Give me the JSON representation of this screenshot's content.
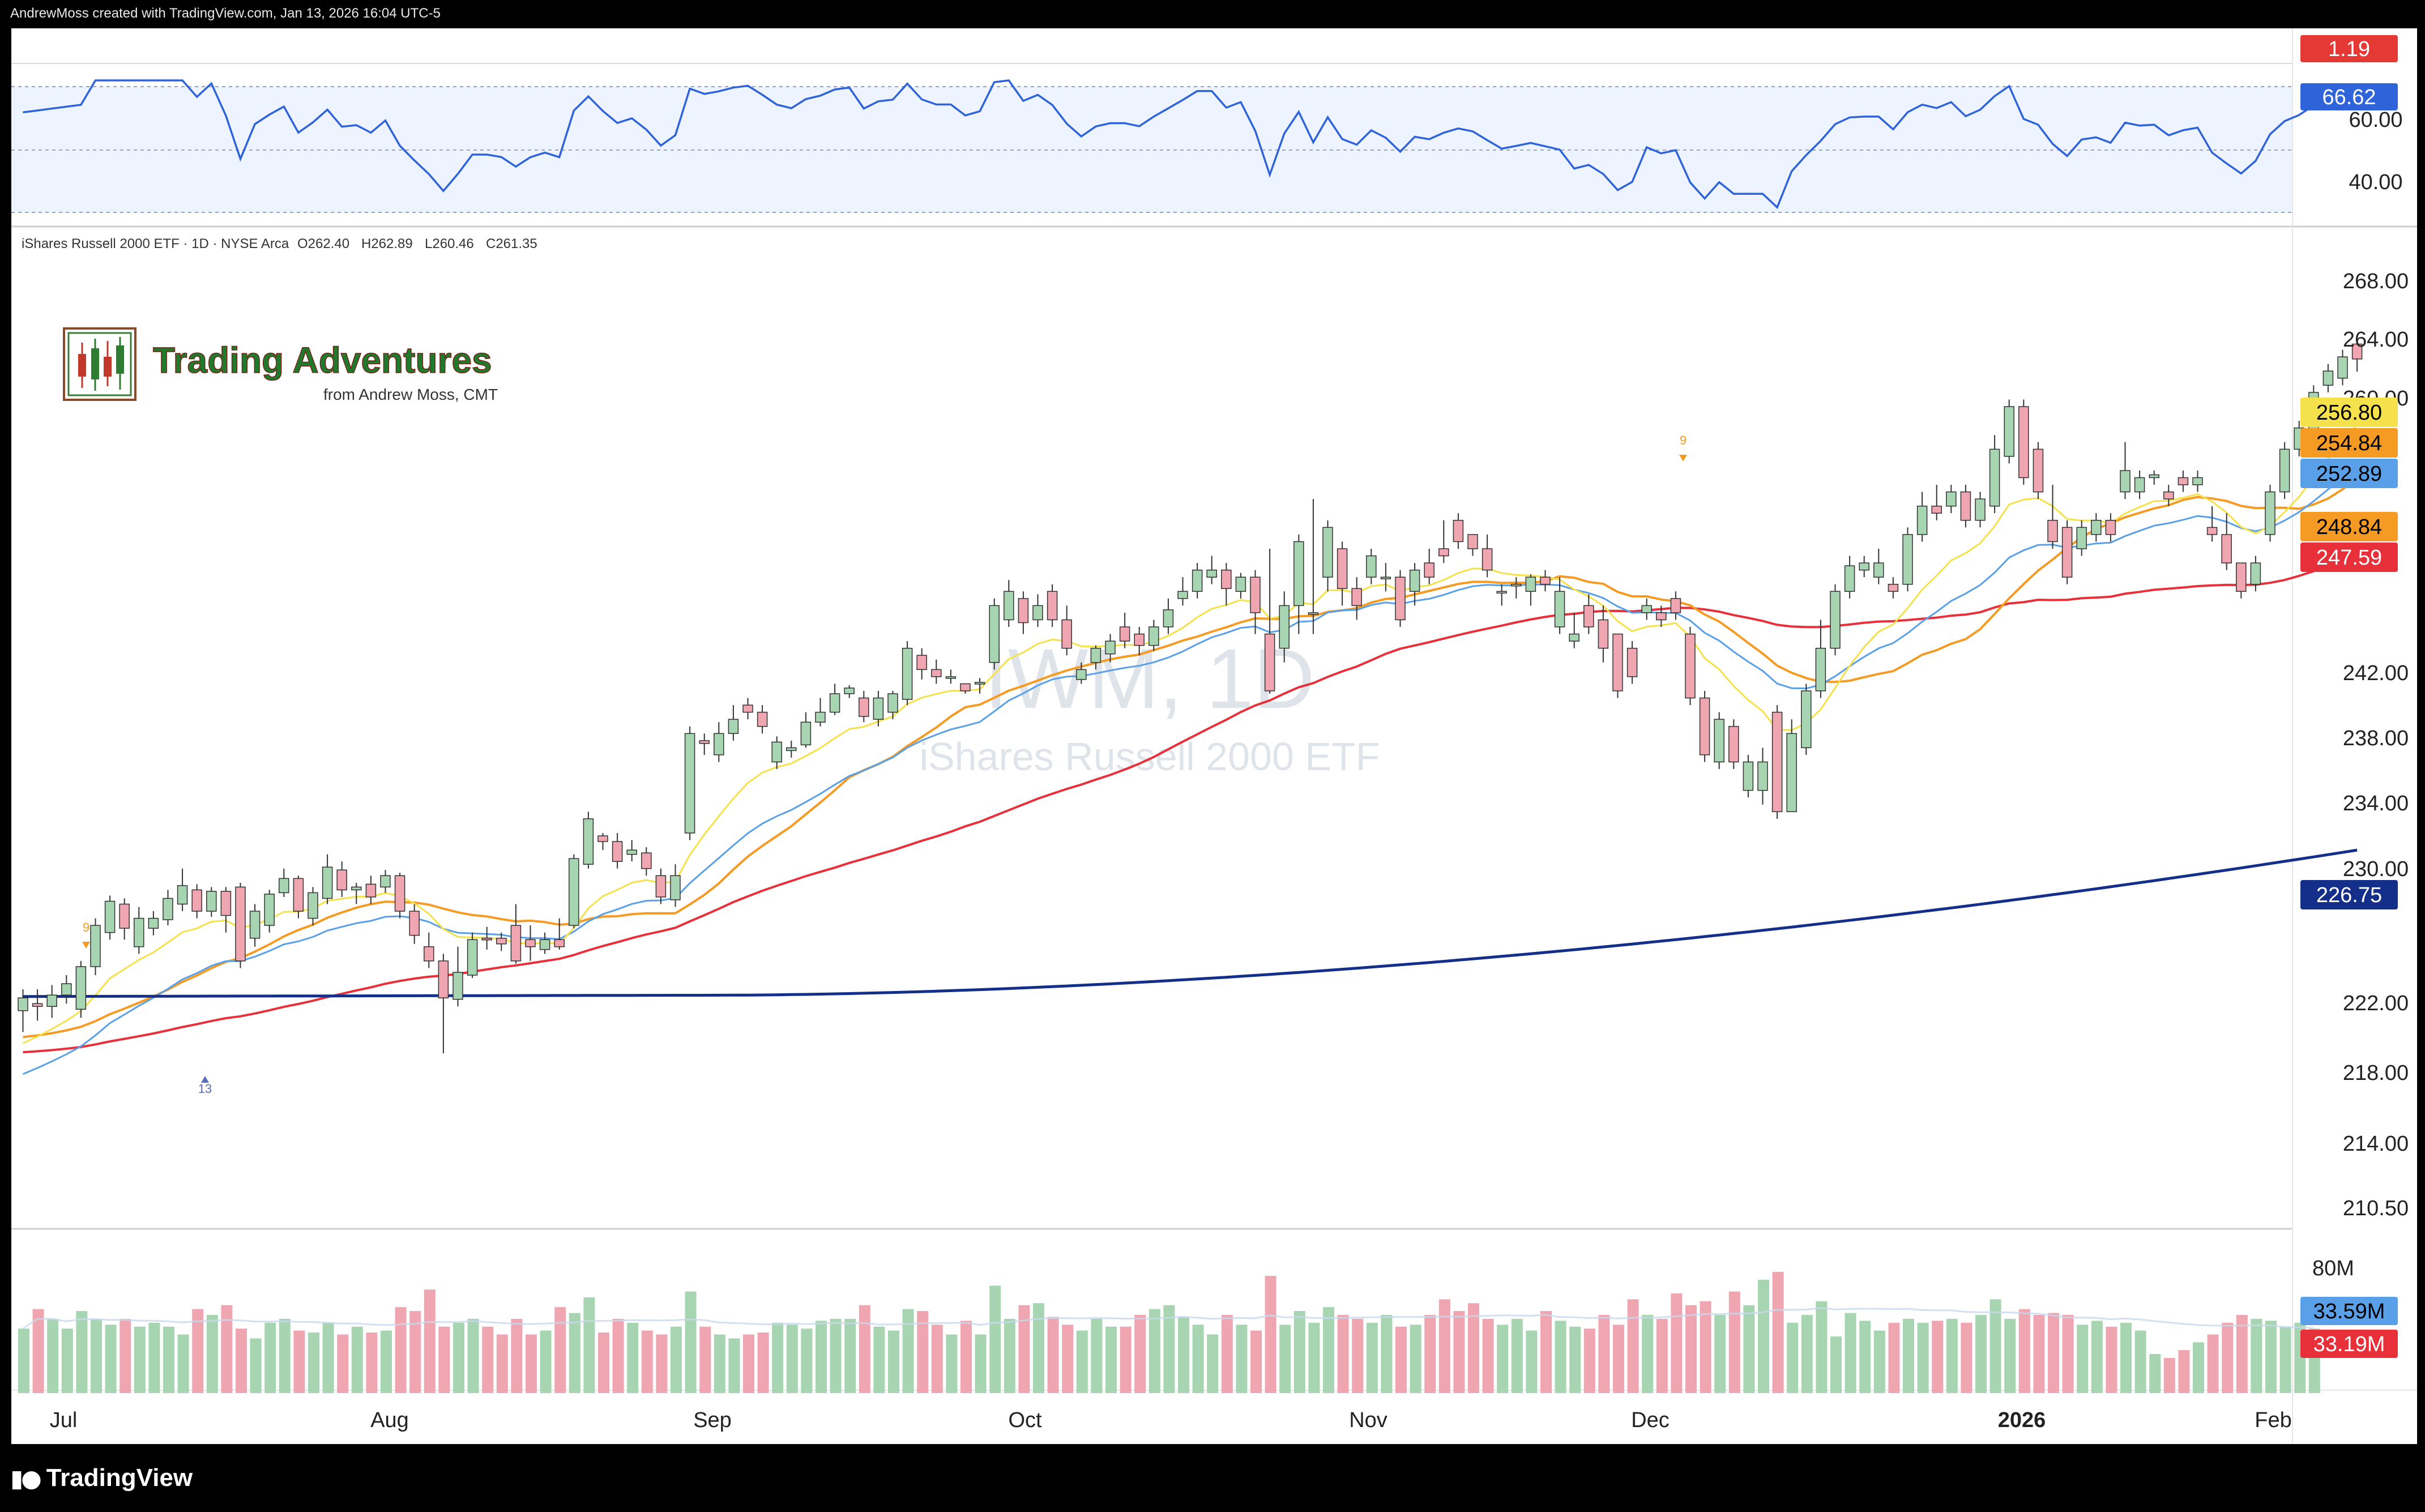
{
  "header": {
    "credit": "AndrewMoss created with TradingView.com, Jan 13, 2026 16:04 UTC-5"
  },
  "footer": {
    "brand": "TradingView",
    "icon": "tradingview-logo-icon"
  },
  "watermark": {
    "symbol": "IWM, 1D",
    "name": "iShares Russell 2000 ETF"
  },
  "logo": {
    "title": "Trading Adventures",
    "subtitle": "from Andrew Moss, CMT",
    "icon": "candlestick-logo-icon"
  },
  "legend": {
    "symbol": "iShares Russell 2000 ETF · 1D · NYSE Arca",
    "open": "O262.40",
    "high": "H262.89",
    "low": "L260.46",
    "close": "C261.35"
  },
  "colors": {
    "up": "#a8d5b1",
    "down": "#f0a6b0",
    "ema10": "#f5e14b",
    "ema21": "#5aa0e8",
    "sma20": "#f59a22",
    "sma50": "#e8303a",
    "sma200": "#142f8a",
    "rsi": "#2f63d9"
  },
  "chart_data": {
    "type": "candlestick",
    "symbol": "IWM",
    "interval": "1D",
    "x_ticks": [
      "Jul",
      "Aug",
      "Sep",
      "Oct",
      "Nov",
      "Dec",
      "2026",
      "Feb"
    ],
    "price_ticks": [
      "268.00",
      "264.00",
      "260.00",
      "242.00",
      "238.00",
      "234.00",
      "230.00",
      "222.00",
      "218.00",
      "214.00",
      "210.50"
    ],
    "ma_labels": [
      {
        "value": "256.80",
        "color": "#f5e14b",
        "text_color": "#000000"
      },
      {
        "value": "254.84",
        "color": "#f59a22",
        "text_color": "#000000"
      },
      {
        "value": "252.89",
        "color": "#5aa0e8",
        "text_color": "#000000"
      },
      {
        "value": "248.84",
        "color": "#f59a22",
        "text_color": "#000000"
      },
      {
        "value": "247.59",
        "color": "#e8303a",
        "text_color": "#ffffff"
      },
      {
        "value": "226.75",
        "color": "#142f8a",
        "text_color": "#ffffff"
      }
    ],
    "rsi": {
      "ticks": [
        "60.00",
        "40.00"
      ],
      "last": "66.62",
      "top_value": "1.19"
    },
    "volume": {
      "tick": "80M",
      "label_up": "33.59M",
      "label_down": "33.19M"
    },
    "markers": [
      {
        "text": "9"
      },
      {
        "text": "13"
      },
      {
        "text": "9"
      }
    ],
    "candles": [
      [
        215.5,
        216.4,
        214.0,
        217.0
      ],
      [
        216.0,
        215.8,
        214.8,
        217.0
      ],
      [
        215.8,
        216.6,
        215.0,
        217.3
      ],
      [
        216.6,
        217.4,
        216.0,
        218.0
      ],
      [
        215.6,
        218.6,
        215.0,
        219.0
      ],
      [
        218.6,
        221.5,
        218.0,
        222.0
      ],
      [
        221.0,
        223.2,
        220.5,
        223.6
      ],
      [
        223.0,
        221.3,
        220.5,
        223.4
      ],
      [
        220.0,
        222.0,
        219.5,
        222.8
      ],
      [
        221.3,
        222.0,
        220.8,
        222.5
      ],
      [
        221.9,
        223.4,
        221.5,
        224.0
      ],
      [
        223.0,
        224.3,
        222.5,
        225.5
      ],
      [
        224.0,
        222.5,
        222.0,
        224.4
      ],
      [
        222.5,
        223.9,
        222.1,
        224.2
      ],
      [
        223.9,
        222.2,
        221.0,
        224.2
      ],
      [
        224.2,
        219.0,
        218.5,
        224.5
      ],
      [
        220.6,
        222.5,
        220.0,
        223.0
      ],
      [
        221.5,
        223.7,
        221.0,
        224.0
      ],
      [
        223.8,
        224.8,
        223.5,
        225.5
      ],
      [
        224.8,
        222.5,
        222.0,
        225.0
      ],
      [
        222.0,
        223.8,
        221.5,
        224.2
      ],
      [
        223.4,
        225.6,
        223.0,
        226.5
      ],
      [
        225.4,
        224.0,
        223.5,
        226.0
      ],
      [
        224.0,
        224.2,
        223.0,
        224.5
      ],
      [
        224.4,
        223.5,
        223.0,
        225.0
      ],
      [
        224.2,
        225.0,
        223.8,
        225.4
      ],
      [
        225.0,
        222.5,
        222.0,
        225.2
      ],
      [
        222.5,
        220.8,
        220.2,
        223.0
      ],
      [
        220.0,
        219.0,
        218.5,
        221.0
      ],
      [
        219.0,
        216.4,
        212.5,
        219.5
      ],
      [
        216.3,
        218.2,
        215.8,
        220.0
      ],
      [
        218.0,
        220.5,
        217.8,
        221.0
      ],
      [
        220.6,
        220.5,
        219.8,
        221.4
      ],
      [
        220.6,
        220.2,
        219.7,
        221.0
      ],
      [
        221.5,
        219.0,
        218.8,
        223.0
      ],
      [
        220.5,
        220.0,
        219.0,
        221.5
      ],
      [
        219.8,
        220.5,
        219.5,
        221.0
      ],
      [
        220.5,
        220.0,
        219.8,
        222.0
      ],
      [
        221.5,
        226.2,
        221.3,
        226.5
      ],
      [
        225.8,
        229.0,
        225.5,
        229.5
      ],
      [
        227.8,
        227.4,
        226.8,
        228.0
      ],
      [
        227.4,
        226.0,
        225.5,
        228.0
      ],
      [
        226.5,
        226.8,
        226.0,
        227.5
      ],
      [
        226.6,
        225.5,
        225.0,
        227.0
      ],
      [
        225.0,
        223.5,
        223.0,
        225.5
      ],
      [
        223.3,
        225.0,
        222.8,
        225.8
      ],
      [
        228.0,
        235.0,
        227.5,
        235.5
      ],
      [
        234.5,
        234.3,
        233.5,
        235.0
      ],
      [
        233.5,
        235.0,
        233.0,
        235.8
      ],
      [
        235.0,
        236.0,
        234.5,
        237.0
      ],
      [
        237.0,
        236.5,
        236.0,
        237.5
      ],
      [
        236.5,
        235.5,
        235.0,
        237.0
      ],
      [
        233.0,
        234.4,
        232.5,
        234.8
      ],
      [
        233.8,
        234.0,
        233.3,
        234.5
      ],
      [
        234.2,
        235.8,
        234.0,
        236.5
      ],
      [
        235.8,
        236.5,
        235.5,
        237.5
      ],
      [
        236.5,
        237.8,
        236.3,
        238.5
      ],
      [
        237.8,
        238.2,
        237.5,
        238.4
      ],
      [
        237.5,
        236.2,
        235.8,
        238.0
      ],
      [
        236.0,
        237.5,
        235.5,
        238.0
      ],
      [
        236.5,
        237.8,
        236.0,
        238.0
      ],
      [
        237.4,
        241.0,
        237.0,
        241.5
      ],
      [
        240.5,
        239.5,
        238.8,
        241.0
      ],
      [
        239.5,
        239.0,
        238.5,
        240.2
      ],
      [
        239.0,
        239.0,
        238.5,
        239.5
      ],
      [
        238.5,
        238.0,
        237.8,
        238.5
      ],
      [
        238.5,
        238.6,
        237.8,
        238.9
      ],
      [
        240.0,
        244.0,
        239.5,
        244.5
      ],
      [
        243.0,
        245.0,
        242.5,
        245.8
      ],
      [
        244.5,
        242.8,
        242.0,
        245.0
      ],
      [
        243.0,
        244.0,
        242.5,
        244.8
      ],
      [
        245.0,
        243.0,
        242.5,
        245.5
      ],
      [
        243.0,
        241.0,
        240.5,
        244.0
      ],
      [
        238.8,
        239.5,
        238.5,
        240.0
      ],
      [
        240.0,
        241.0,
        239.5,
        241.2
      ],
      [
        240.6,
        241.5,
        240.0,
        242.0
      ],
      [
        242.5,
        241.5,
        241.0,
        243.5
      ],
      [
        242.0,
        241.2,
        240.5,
        242.5
      ],
      [
        241.2,
        242.5,
        240.8,
        243.0
      ],
      [
        242.5,
        243.7,
        242.0,
        244.5
      ],
      [
        244.5,
        245.0,
        244.0,
        246.0
      ],
      [
        245.0,
        246.5,
        244.5,
        247.0
      ],
      [
        246.0,
        246.5,
        245.5,
        247.5
      ],
      [
        246.5,
        245.2,
        244.0,
        247.0
      ],
      [
        245.0,
        246.0,
        244.5,
        246.3
      ],
      [
        246.0,
        243.5,
        242.0,
        246.5
      ],
      [
        242.0,
        238.0,
        237.8,
        248.0
      ],
      [
        241.0,
        244.0,
        240.0,
        245.0
      ],
      [
        244.0,
        248.5,
        242.0,
        249.0
      ],
      [
        243.5,
        243.5,
        242.0,
        251.5
      ],
      [
        246.0,
        249.5,
        245.0,
        250.0
      ],
      [
        248.0,
        245.2,
        244.0,
        248.5
      ],
      [
        245.2,
        244.0,
        243.0,
        246.0
      ],
      [
        246.0,
        247.5,
        245.5,
        248.0
      ],
      [
        246.0,
        246.0,
        245.0,
        247.0
      ],
      [
        246.0,
        243.0,
        242.5,
        246.5
      ],
      [
        245.0,
        246.5,
        244.0,
        247.0
      ],
      [
        247.0,
        246.0,
        245.5,
        248.0
      ],
      [
        248.0,
        247.5,
        247.0,
        250.0
      ],
      [
        250.0,
        248.5,
        248.0,
        250.5
      ],
      [
        249.0,
        248.0,
        247.5,
        249.0
      ],
      [
        248.0,
        246.5,
        246.0,
        249.0
      ],
      [
        245.0,
        245.0,
        244.0,
        245.5
      ],
      [
        245.5,
        245.5,
        244.5,
        246.0
      ],
      [
        245.0,
        246.0,
        244.0,
        246.2
      ],
      [
        246.0,
        245.5,
        245.0,
        246.5
      ],
      [
        242.5,
        245.0,
        242.0,
        246.0
      ],
      [
        241.5,
        242.0,
        241.0,
        243.5
      ],
      [
        244.0,
        242.5,
        242.0,
        244.8
      ],
      [
        243.0,
        241.0,
        240.0,
        244.0
      ],
      [
        242.0,
        238.0,
        237.5,
        242.0
      ],
      [
        241.0,
        239.0,
        238.5,
        241.5
      ],
      [
        243.5,
        244.0,
        243.0,
        244.5
      ],
      [
        243.5,
        243.0,
        242.5,
        244.0
      ],
      [
        244.5,
        243.5,
        243.0,
        245.0
      ],
      [
        242.0,
        237.5,
        237.0,
        242.5
      ],
      [
        237.5,
        233.5,
        233.0,
        238.0
      ],
      [
        233.0,
        236.0,
        232.5,
        236.5
      ],
      [
        235.5,
        233.0,
        232.5,
        236.0
      ],
      [
        231.0,
        233.0,
        230.5,
        233.5
      ],
      [
        231.0,
        233.0,
        230.0,
        234.0
      ],
      [
        236.5,
        229.5,
        229.0,
        237.0
      ],
      [
        229.5,
        235.0,
        229.5,
        236.0
      ],
      [
        234.0,
        238.0,
        233.5,
        238.5
      ],
      [
        238.0,
        241.0,
        237.5,
        243.0
      ],
      [
        241.0,
        245.0,
        240.5,
        245.5
      ],
      [
        245.0,
        246.8,
        244.5,
        247.5
      ],
      [
        246.5,
        247.0,
        246.0,
        247.5
      ],
      [
        246.0,
        247.0,
        245.5,
        248.0
      ],
      [
        245.5,
        245.0,
        244.5,
        246.0
      ],
      [
        245.5,
        249.0,
        245.0,
        249.5
      ],
      [
        249.0,
        251.0,
        248.5,
        252.0
      ],
      [
        251.0,
        250.5,
        250.0,
        252.5
      ],
      [
        251.0,
        252.0,
        250.5,
        252.5
      ],
      [
        252.0,
        250.0,
        249.5,
        252.5
      ],
      [
        250.0,
        251.5,
        249.5,
        252.0
      ],
      [
        251.0,
        255.0,
        250.5,
        256.0
      ],
      [
        254.5,
        258.0,
        254.0,
        258.5
      ],
      [
        258.0,
        253.0,
        252.5,
        258.5
      ],
      [
        255.0,
        252.0,
        251.5,
        255.5
      ],
      [
        250.0,
        248.5,
        248.0,
        252.5
      ],
      [
        249.5,
        246.0,
        245.5,
        250.0
      ],
      [
        248.0,
        249.5,
        247.5,
        250.0
      ],
      [
        249.0,
        250.0,
        248.5,
        250.5
      ],
      [
        250.0,
        249.0,
        248.5,
        250.5
      ],
      [
        252.0,
        253.5,
        251.5,
        255.5
      ],
      [
        252.0,
        253.0,
        251.5,
        253.5
      ],
      [
        253.0,
        253.2,
        252.5,
        253.5
      ],
      [
        252.0,
        251.5,
        251.0,
        252.5
      ],
      [
        253.0,
        252.5,
        252.0,
        253.5
      ],
      [
        252.5,
        253.0,
        252.0,
        253.5
      ],
      [
        249.5,
        249.0,
        248.5,
        251.0
      ],
      [
        249.0,
        247.0,
        246.5,
        250.5
      ],
      [
        247.0,
        245.0,
        244.5,
        247.0
      ],
      [
        245.5,
        247.0,
        245.0,
        247.5
      ],
      [
        249.0,
        252.0,
        248.5,
        252.5
      ],
      [
        252.0,
        255.0,
        251.5,
        255.5
      ],
      [
        255.0,
        256.5,
        254.5,
        257.0
      ],
      [
        256.0,
        259.0,
        255.5,
        259.5
      ],
      [
        259.5,
        260.5,
        259.0,
        261.0
      ],
      [
        260.0,
        261.5,
        259.5,
        262.0
      ],
      [
        262.4,
        261.35,
        260.46,
        262.89
      ]
    ],
    "volumes": [
      33,
      43,
      38,
      33,
      42,
      38,
      35,
      38,
      34,
      36,
      34,
      30,
      43,
      40,
      45,
      33,
      28,
      36,
      38,
      32,
      31,
      36,
      30,
      34,
      31,
      32,
      44,
      42,
      53,
      34,
      36,
      38,
      34,
      30,
      38,
      30,
      32,
      44,
      41,
      49,
      31,
      38,
      36,
      32,
      30,
      34,
      52,
      34,
      30,
      28,
      30,
      31,
      36,
      35,
      33,
      37,
      38,
      38,
      45,
      34,
      32,
      43,
      42,
      35,
      30,
      37,
      30,
      55,
      38,
      45,
      46,
      39,
      35,
      32,
      38,
      34,
      34,
      40,
      43,
      45,
      39,
      35,
      30,
      40,
      35,
      32,
      60,
      35,
      42,
      36,
      44,
      40,
      38,
      36,
      40,
      34,
      35,
      40,
      48,
      42,
      46,
      38,
      35,
      38,
      32,
      42,
      37,
      34,
      33,
      40,
      35,
      48,
      40,
      38,
      51,
      45,
      47,
      40,
      52,
      45,
      58,
      62,
      36,
      40,
      47,
      29,
      41,
      37,
      32,
      36,
      38,
      36,
      37,
      38,
      36,
      40,
      48,
      38,
      43,
      40,
      41,
      40,
      35,
      37,
      34,
      36,
      32,
      20,
      18,
      22,
      26,
      30,
      36,
      40,
      38,
      37,
      34,
      36,
      33
    ]
  }
}
